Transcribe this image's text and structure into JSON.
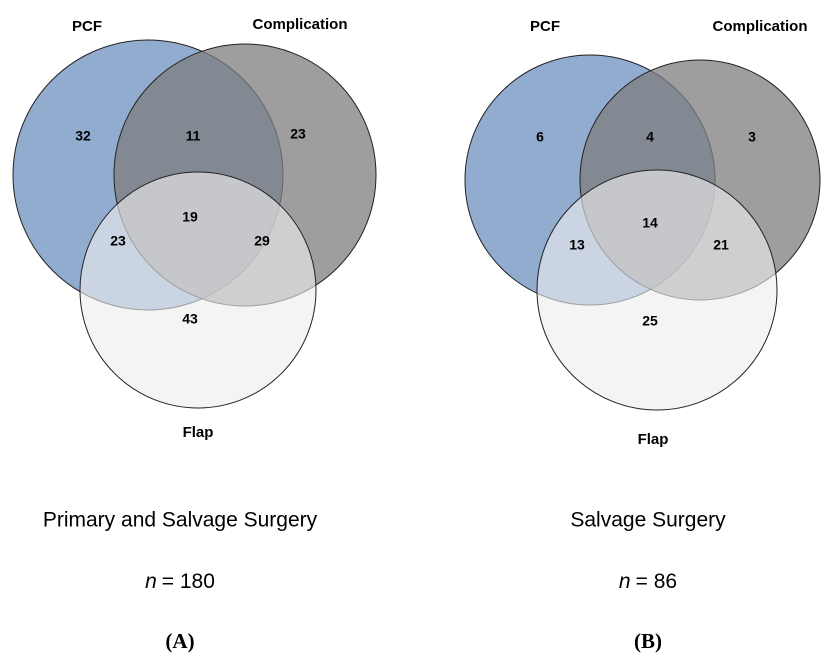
{
  "panels": [
    {
      "sets": {
        "pcf": "PCF",
        "complication": "Complication",
        "flap": "Flap"
      },
      "regions": {
        "pcf_only": 32,
        "pcf_complication": 11,
        "complication_only": 23,
        "pcf_flap": 23,
        "all": 19,
        "complication_flap": 29,
        "flap_only": 43
      },
      "title": "Primary and Salvage Surgery",
      "n_symbol": "n",
      "n_text": "= 180",
      "label": "(A)"
    },
    {
      "sets": {
        "pcf": "PCF",
        "complication": "Complication",
        "flap": "Flap"
      },
      "regions": {
        "pcf_only": 6,
        "pcf_complication": 4,
        "complication_only": 3,
        "pcf_flap": 13,
        "all": 14,
        "complication_flap": 21,
        "flap_only": 25
      },
      "title": "Salvage Surgery",
      "n_symbol": "n",
      "n_text": "= 86",
      "label": "(B)"
    }
  ]
}
